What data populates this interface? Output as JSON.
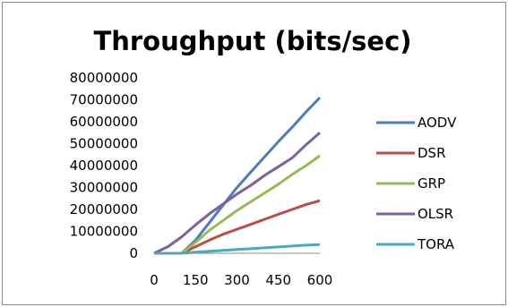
{
  "chart_data": {
    "type": "line",
    "title": "Throughput (bits/sec)",
    "xlabel": "",
    "ylabel": "",
    "x": [
      0,
      50,
      100,
      150,
      200,
      250,
      300,
      350,
      400,
      450,
      500,
      550,
      600
    ],
    "x_ticks": [
      "0",
      "150",
      "300",
      "450",
      "600"
    ],
    "x_tick_values": [
      0,
      150,
      300,
      450,
      600
    ],
    "y_ticks": [
      "0",
      "10000000",
      "20000000",
      "30000000",
      "40000000",
      "50000000",
      "60000000",
      "70000000",
      "80000000"
    ],
    "ylim": [
      0,
      80000000
    ],
    "xlim": [
      0,
      600
    ],
    "grid": false,
    "legend_position": "right",
    "series": [
      {
        "name": "AODV",
        "color": "#4a7ebb",
        "values": [
          0,
          0,
          0,
          6000000,
          14000000,
          22000000,
          30000000,
          37000000,
          44000000,
          51000000,
          57500000,
          64500000,
          71000000
        ]
      },
      {
        "name": "DSR",
        "color": "#be4b48",
        "values": [
          0,
          0,
          0,
          3000000,
          6000000,
          8700000,
          11000000,
          13200000,
          15500000,
          17800000,
          20000000,
          22200000,
          24000000
        ]
      },
      {
        "name": "GRP",
        "color": "#98b954",
        "values": [
          0,
          0,
          0,
          5000000,
          10500000,
          15000000,
          19500000,
          23500000,
          27500000,
          31500000,
          36000000,
          40000000,
          44500000
        ]
      },
      {
        "name": "OLSR",
        "color": "#7d60a0",
        "values": [
          0,
          3000000,
          7500000,
          13000000,
          18000000,
          22500000,
          27000000,
          31000000,
          35500000,
          39500000,
          43500000,
          49500000,
          55000000
        ]
      },
      {
        "name": "TORA",
        "color": "#46aac5",
        "values": [
          0,
          0,
          0,
          500000,
          900000,
          1300000,
          1700000,
          2100000,
          2500000,
          2900000,
          3300000,
          3700000,
          4000000
        ]
      }
    ]
  }
}
